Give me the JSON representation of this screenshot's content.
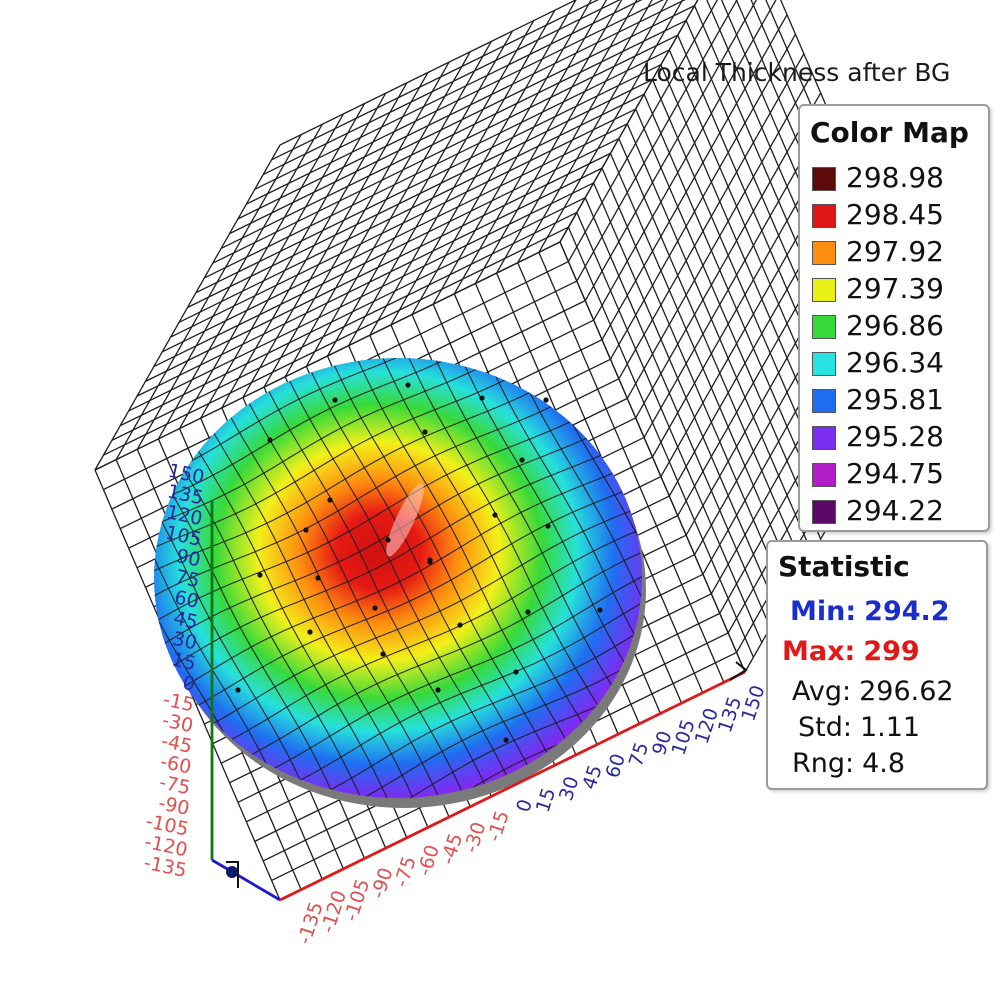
{
  "chart_data": {
    "type": "heatmap",
    "title": "Local Thickness after BG",
    "x_ticks": [
      "-135",
      "-120",
      "-105",
      "-90",
      "-75",
      "-60",
      "-45",
      "-30",
      "-15",
      "0",
      "15",
      "30",
      "45",
      "60",
      "75",
      "90",
      "105",
      "120",
      "135",
      "150"
    ],
    "y_ticks": [
      "-135",
      "-120",
      "-105",
      "-90",
      "-75",
      "-60",
      "-45",
      "-30",
      "-15",
      "0",
      "15",
      "30",
      "45",
      "60",
      "75",
      "90",
      "105",
      "120",
      "135",
      "150"
    ],
    "xlim": [
      -150,
      150
    ],
    "ylim": [
      -150,
      150
    ],
    "color_map": {
      "title": "Color Map",
      "entries": [
        {
          "value": "298.98",
          "color": "#5c0a0a"
        },
        {
          "value": "298.45",
          "color": "#e11616"
        },
        {
          "value": "297.92",
          "color": "#ff8c10"
        },
        {
          "value": "297.39",
          "color": "#e8f018"
        },
        {
          "value": "296.86",
          "color": "#35d93a"
        },
        {
          "value": "296.34",
          "color": "#28e3e0"
        },
        {
          "value": "295.81",
          "color": "#1f6ef0"
        },
        {
          "value": "295.28",
          "color": "#7a2ef2"
        },
        {
          "value": "294.75",
          "color": "#b21cc8"
        },
        {
          "value": "294.22",
          "color": "#5a0a66"
        }
      ]
    },
    "statistic": {
      "title": "Statistic",
      "min": {
        "label": "Min:",
        "value": "294.2",
        "color": "#1a2ecc"
      },
      "max": {
        "label": "Max:",
        "value": "299",
        "color": "#e01818"
      },
      "avg": {
        "label": "Avg:",
        "value": "296.62"
      },
      "std": {
        "label": "Std:",
        "value": "1.11"
      },
      "rng": {
        "label": "Rng:",
        "value": "4.8"
      }
    },
    "axis_colors": {
      "x": "#e01818",
      "y": "#0c7a0c",
      "z": "#1a1acc"
    },
    "tick_label_colors": {
      "negative": "#e05050",
      "non_negative": "#2a2a9a"
    },
    "grid": true
  }
}
